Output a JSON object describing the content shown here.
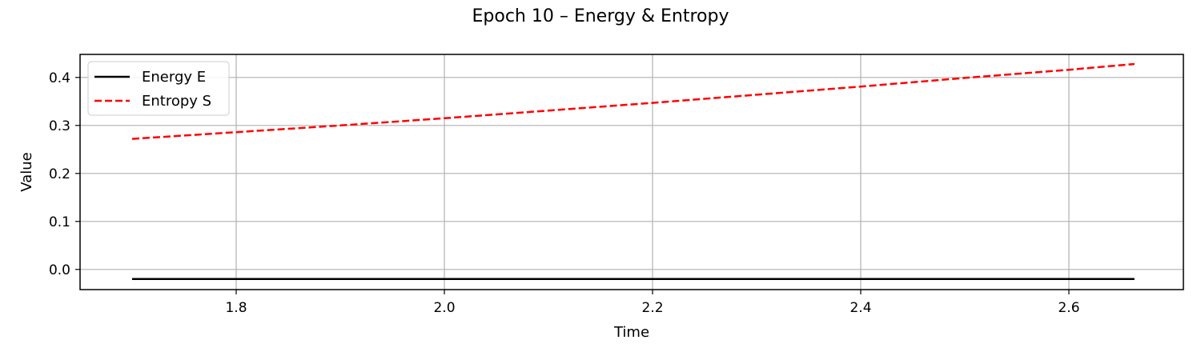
{
  "chart_data": {
    "type": "line",
    "title": "Epoch 10 – Energy & Entropy",
    "xlabel": "Time",
    "ylabel": "Value",
    "xlim": [
      1.65,
      2.71
    ],
    "ylim": [
      -0.042,
      0.448
    ],
    "xticks": [
      1.8,
      2.0,
      2.2,
      2.4,
      2.6
    ],
    "yticks": [
      0.0,
      0.1,
      0.2,
      0.3,
      0.4
    ],
    "xtick_labels": [
      "1.8",
      "2.0",
      "2.2",
      "2.4",
      "2.6"
    ],
    "ytick_labels": [
      "0.0",
      "0.1",
      "0.2",
      "0.3",
      "0.4"
    ],
    "grid": true,
    "legend_position": "top-left",
    "series": [
      {
        "name": "Energy E",
        "color": "#000000",
        "dash": "solid",
        "x": [
          1.7,
          2.663
        ],
        "y": [
          -0.02,
          -0.02
        ]
      },
      {
        "name": "Entropy S",
        "color": "#ff0000",
        "dash": "dashed",
        "x": [
          1.7,
          1.8,
          1.9,
          2.0,
          2.1,
          2.2,
          2.3,
          2.4,
          2.5,
          2.6,
          2.663
        ],
        "y": [
          0.272,
          0.286,
          0.3,
          0.315,
          0.331,
          0.347,
          0.364,
          0.381,
          0.399,
          0.416,
          0.428
        ]
      }
    ]
  }
}
